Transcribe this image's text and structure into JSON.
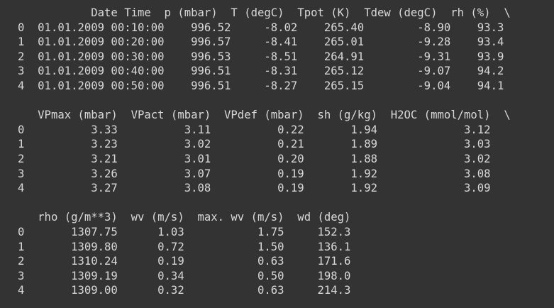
{
  "block1": {
    "header": "           Date Time  p (mbar)  T (degC)  Tpot (K)  Tdew (degC)  rh (%)  \\",
    "rows": [
      "0  01.01.2009 00:10:00    996.52     -8.02    265.40        -8.90    93.3",
      "1  01.01.2009 00:20:00    996.57     -8.41    265.01        -9.28    93.4",
      "2  01.01.2009 00:30:00    996.53     -8.51    264.91        -9.31    93.9",
      "3  01.01.2009 00:40:00    996.51     -8.31    265.12        -9.07    94.2",
      "4  01.01.2009 00:50:00    996.51     -8.27    265.15        -9.04    94.1"
    ]
  },
  "block2": {
    "header": "   VPmax (mbar)  VPact (mbar)  VPdef (mbar)  sh (g/kg)  H2OC (mmol/mol)  \\",
    "rows": [
      "0          3.33          3.11          0.22       1.94             3.12",
      "1          3.23          3.02          0.21       1.89             3.03",
      "2          3.21          3.01          0.20       1.88             3.02",
      "3          3.26          3.07          0.19       1.92             3.08",
      "4          3.27          3.08          0.19       1.92             3.09"
    ]
  },
  "block3": {
    "header": "   rho (g/m**3)  wv (m/s)  max. wv (m/s)  wd (deg)",
    "rows": [
      "0       1307.75      1.03           1.75     152.3",
      "1       1309.80      0.72           1.50     136.1",
      "2       1310.24      0.19           0.63     171.6",
      "3       1309.19      0.34           0.50     198.0",
      "4       1309.00      0.32           0.63     214.3"
    ]
  }
}
